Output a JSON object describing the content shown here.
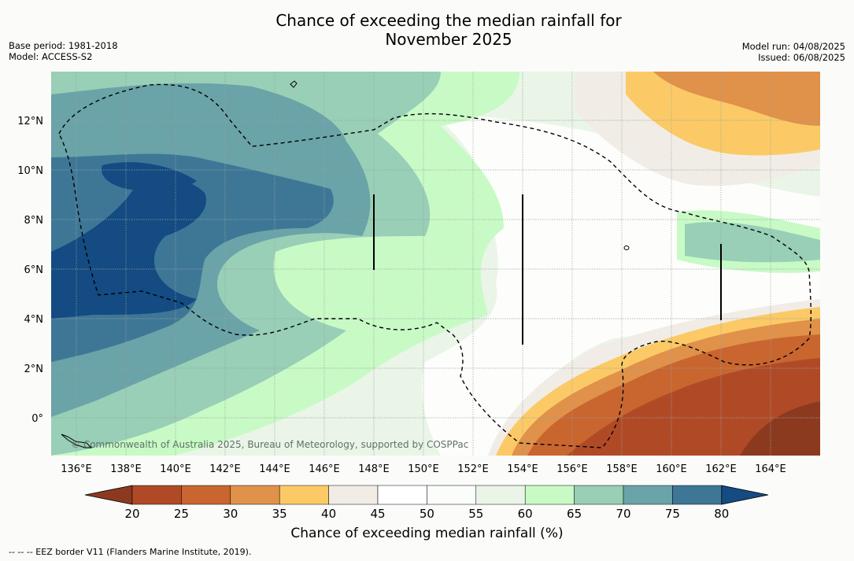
{
  "title_line1": "Chance of exceeding the median rainfall for",
  "title_line2": "November 2025",
  "base_period": "Base period: 1981-2018",
  "model": "Model: ACCESS-S2",
  "model_run": "Model run: 04/08/2025",
  "issued": "Issued: 06/08/2025",
  "credit": "© Commonwealth of Australia 2025, Bureau of Meteorology, supported by COSPPac",
  "footer": "--  --  -- EEZ border V11 (Flanders Marine Institute, 2019).",
  "lon_labels": [
    "136°E",
    "138°E",
    "140°E",
    "142°E",
    "144°E",
    "146°E",
    "148°E",
    "150°E",
    "152°E",
    "154°E",
    "156°E",
    "158°E",
    "160°E",
    "162°E",
    "164°E"
  ],
  "lat_labels": [
    "12°N",
    "10°N",
    "8°N",
    "6°N",
    "4°N",
    "2°N",
    "0°"
  ],
  "colorbar": {
    "title": "Chance of exceeding median rainfall (%)",
    "ticks": [
      "20",
      "25",
      "30",
      "35",
      "40",
      "45",
      "50",
      "55",
      "60",
      "65",
      "70",
      "75",
      "80"
    ],
    "colors": [
      "#8c3a1f",
      "#b04a26",
      "#c9652f",
      "#e0914a",
      "#fbca66",
      "#f1ede6",
      "#ffffff",
      "#fbfdfb",
      "#eaf5e8",
      "#c8fac6",
      "#98cfb6",
      "#6aa3a8",
      "#3e7796",
      "#134b82"
    ]
  }
}
